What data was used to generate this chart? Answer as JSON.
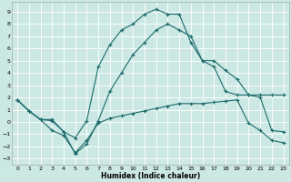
{
  "xlabel": "Humidex (Indice chaleur)",
  "background_color": "#cce8e4",
  "grid_color": "#b8d8d4",
  "line_color": "#1a6b6b",
  "x_ticks": [
    0,
    1,
    2,
    3,
    4,
    5,
    6,
    7,
    8,
    9,
    10,
    11,
    12,
    13,
    14,
    15,
    16,
    17,
    18,
    19,
    20,
    21,
    22,
    23
  ],
  "y_ticks": [
    -3,
    -2,
    -1,
    0,
    1,
    2,
    3,
    4,
    5,
    6,
    7,
    8,
    9
  ],
  "ylim": [
    -3.5,
    9.8
  ],
  "xlim": [
    -0.5,
    23.5
  ],
  "line1_x": [
    0,
    1,
    2,
    3,
    4,
    5,
    6,
    7,
    8,
    9,
    10,
    11,
    12,
    13,
    14,
    15,
    16,
    17,
    18,
    19,
    20,
    21,
    22,
    23
  ],
  "line1_y": [
    1.8,
    0.9,
    0.2,
    0.2,
    -0.8,
    -2.6,
    -1.8,
    0.1,
    2.5,
    4.0,
    5.5,
    6.5,
    7.5,
    8.0,
    7.5,
    7.0,
    5.0,
    5.0,
    4.2,
    3.5,
    2.2,
    2.2,
    2.2,
    2.2
  ],
  "line2_x": [
    0,
    1,
    2,
    3,
    4,
    5,
    6,
    7,
    8,
    9,
    10,
    11,
    12,
    13,
    14,
    15,
    16,
    17,
    18,
    19,
    20,
    21,
    22,
    23
  ],
  "line2_y": [
    1.8,
    0.9,
    0.2,
    0.1,
    -0.8,
    -1.3,
    0.1,
    4.5,
    6.3,
    7.5,
    8.0,
    8.8,
    9.2,
    8.8,
    8.8,
    6.5,
    5.0,
    4.5,
    2.5,
    2.2,
    2.2,
    2.0,
    -0.7,
    -0.8
  ],
  "line3_x": [
    0,
    1,
    2,
    3,
    4,
    5,
    6,
    7,
    8,
    9,
    10,
    11,
    12,
    13,
    14,
    15,
    16,
    17,
    18,
    19,
    20,
    21,
    22,
    23
  ],
  "line3_y": [
    1.8,
    0.9,
    0.2,
    -0.7,
    -1.1,
    -2.5,
    -1.5,
    -0.1,
    0.3,
    0.5,
    0.7,
    0.9,
    1.1,
    1.3,
    1.5,
    1.5,
    1.5,
    1.6,
    1.7,
    1.8,
    -0.1,
    -0.7,
    -1.5,
    -1.7
  ]
}
